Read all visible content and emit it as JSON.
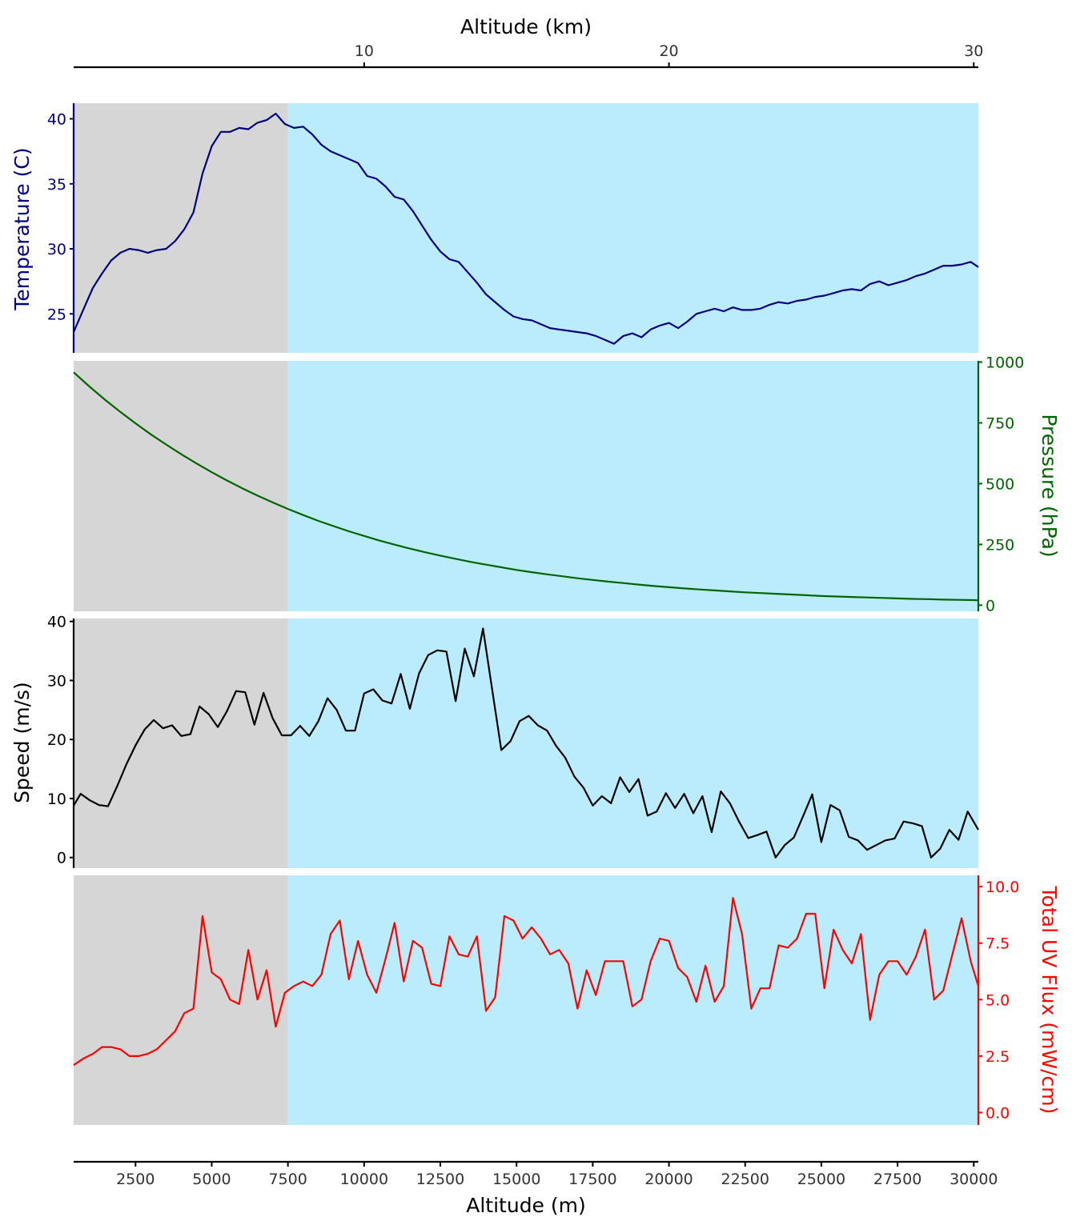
{
  "chart_data": {
    "type": "line",
    "x_label_bottom": "Altitude (m)",
    "x_label_top": "Altitude (km)",
    "x_range": [
      470,
      30150
    ],
    "x_ticks_bottom": [
      "2500",
      "5000",
      "7500",
      "10000",
      "12500",
      "15000",
      "17500",
      "20000",
      "22500",
      "25000",
      "27500",
      "30000"
    ],
    "x_ticks_top": [
      "10",
      "20",
      "30"
    ],
    "regions": [
      {
        "from": 470,
        "to": 7500,
        "color": "#d6d6d6"
      },
      {
        "from": 7500,
        "to": 30150,
        "color": "#bbecfd"
      }
    ],
    "panels": [
      {
        "name": "temperature",
        "ylabel": "Temperature (C)",
        "axis_side": "left",
        "color": "#00007f",
        "ylim": [
          22,
          41.2
        ],
        "yticks": [
          "25",
          "30",
          "35",
          "40"
        ],
        "x": [
          470,
          800,
          1100,
          1400,
          1700,
          2000,
          2300,
          2600,
          2900,
          3200,
          3500,
          3800,
          4100,
          4400,
          4700,
          5000,
          5300,
          5600,
          5900,
          6200,
          6500,
          6800,
          7100,
          7400,
          7700,
          8000,
          8300,
          8600,
          8900,
          9200,
          9500,
          9800,
          10100,
          10400,
          10700,
          11000,
          11300,
          11600,
          11900,
          12200,
          12500,
          12800,
          13100,
          13400,
          13700,
          14000,
          14300,
          14600,
          14900,
          15200,
          15500,
          15800,
          16100,
          16400,
          16700,
          17000,
          17300,
          17600,
          17900,
          18200,
          18500,
          18800,
          19100,
          19400,
          19700,
          20000,
          20300,
          20600,
          20900,
          21200,
          21500,
          21800,
          22100,
          22400,
          22700,
          23000,
          23300,
          23600,
          23900,
          24200,
          24500,
          24800,
          25100,
          25400,
          25700,
          26000,
          26300,
          26600,
          26900,
          27200,
          27500,
          27800,
          28100,
          28400,
          28700,
          29000,
          29300,
          29600,
          29900,
          30150
        ],
        "y": [
          23.6,
          25.4,
          27.0,
          28.1,
          29.1,
          29.7,
          30.0,
          29.9,
          29.7,
          29.9,
          30.0,
          30.6,
          31.5,
          32.8,
          35.8,
          37.9,
          39.0,
          39.0,
          39.3,
          39.2,
          39.7,
          39.9,
          40.4,
          39.6,
          39.3,
          39.4,
          38.8,
          38.0,
          37.5,
          37.2,
          36.9,
          36.6,
          35.6,
          35.4,
          34.8,
          34.0,
          33.8,
          32.9,
          31.8,
          30.7,
          29.8,
          29.2,
          29.0,
          28.2,
          27.4,
          26.5,
          25.9,
          25.3,
          24.8,
          24.6,
          24.5,
          24.2,
          23.9,
          23.8,
          23.7,
          23.6,
          23.5,
          23.3,
          23.0,
          22.7,
          23.3,
          23.5,
          23.2,
          23.8,
          24.1,
          24.3,
          23.9,
          24.4,
          25.0,
          25.2,
          25.4,
          25.2,
          25.5,
          25.3,
          25.3,
          25.4,
          25.7,
          25.9,
          25.8,
          26.0,
          26.1,
          26.3,
          26.4,
          26.6,
          26.8,
          26.9,
          26.8,
          27.3,
          27.5,
          27.2,
          27.4,
          27.6,
          27.9,
          28.1,
          28.4,
          28.7,
          28.7,
          28.8,
          29.0,
          28.6
        ]
      },
      {
        "name": "pressure",
        "ylabel": "Pressure (hPa)",
        "axis_side": "right",
        "color": "#006400",
        "ylim": [
          -25,
          1005
        ],
        "yticks": [
          "0",
          "250",
          "500",
          "750",
          "1000"
        ],
        "x": [
          470,
          1000,
          1500,
          2000,
          2500,
          3000,
          3500,
          4000,
          4500,
          5000,
          5500,
          6000,
          6500,
          7000,
          7500,
          8000,
          8500,
          9000,
          9500,
          10000,
          10500,
          11000,
          11500,
          12000,
          12500,
          13000,
          13500,
          14000,
          14500,
          15000,
          15500,
          16000,
          16500,
          17000,
          17500,
          18000,
          18500,
          19000,
          19500,
          20000,
          20500,
          21000,
          21500,
          22000,
          22500,
          23000,
          23500,
          24000,
          24500,
          25000,
          25500,
          26000,
          26500,
          27000,
          27500,
          28000,
          28500,
          29000,
          29500,
          30000,
          30150
        ],
        "y": [
          958,
          898,
          845,
          795,
          748,
          703,
          661,
          621,
          583,
          547,
          513,
          481,
          451,
          423,
          396,
          371,
          347,
          325,
          304,
          285,
          266,
          249,
          233,
          218,
          204,
          191,
          178,
          167,
          156,
          145,
          136,
          127,
          119,
          111,
          104,
          97,
          91,
          85,
          79,
          74,
          69,
          65,
          61,
          57,
          53,
          50,
          47,
          44,
          41,
          38,
          36,
          34,
          32,
          30,
          28,
          26,
          25,
          23,
          22,
          21,
          20
        ]
      },
      {
        "name": "speed",
        "ylabel": "Speed (m/s)",
        "axis_side": "left",
        "color": "#000000",
        "ylim": [
          -1.8,
          40.5
        ],
        "yticks": [
          "0",
          "10",
          "20",
          "30",
          "40"
        ],
        "x": [
          470,
          700,
          1000,
          1300,
          1600,
          1900,
          2200,
          2500,
          2800,
          3100,
          3400,
          3700,
          4000,
          4300,
          4600,
          4900,
          5200,
          5500,
          5800,
          6100,
          6400,
          6700,
          7000,
          7300,
          7600,
          7900,
          8200,
          8500,
          8800,
          9100,
          9400,
          9700,
          10000,
          10300,
          10600,
          10900,
          11200,
          11500,
          11800,
          12100,
          12400,
          12700,
          13000,
          13300,
          13600,
          13900,
          14200,
          14500,
          14800,
          15100,
          15400,
          15700,
          16000,
          16300,
          16600,
          16900,
          17200,
          17500,
          17800,
          18100,
          18400,
          18700,
          19000,
          19300,
          19600,
          19900,
          20200,
          20500,
          20800,
          21100,
          21400,
          21700,
          22000,
          22300,
          22600,
          22900,
          23200,
          23500,
          23800,
          24100,
          24400,
          24700,
          25000,
          25300,
          25600,
          25900,
          26200,
          26500,
          26800,
          27100,
          27400,
          27700,
          28000,
          28300,
          28600,
          28900,
          29200,
          29500,
          29800,
          30150
        ],
        "y": [
          8.8,
          10.8,
          9.7,
          8.9,
          8.7,
          12.1,
          15.8,
          19.0,
          21.7,
          23.3,
          21.9,
          22.4,
          20.6,
          20.9,
          25.6,
          24.3,
          22.1,
          24.8,
          28.2,
          28.0,
          22.5,
          27.9,
          23.6,
          20.7,
          20.7,
          22.3,
          20.6,
          23.1,
          27.0,
          25.0,
          21.5,
          21.5,
          27.8,
          28.5,
          26.6,
          26.1,
          31.1,
          25.2,
          31.2,
          34.3,
          35.1,
          34.9,
          26.5,
          35.4,
          30.7,
          38.8,
          28.5,
          18.2,
          19.7,
          23.1,
          24.0,
          22.4,
          21.5,
          18.9,
          16.9,
          13.7,
          11.8,
          8.8,
          10.4,
          9.2,
          13.6,
          11.1,
          13.3,
          7.1,
          7.8,
          10.9,
          8.4,
          10.8,
          7.5,
          10.4,
          4.3,
          11.2,
          9.2,
          6.1,
          3.3,
          3.8,
          4.4,
          0.0,
          2.1,
          3.4,
          7.0,
          10.7,
          2.6,
          8.9,
          8.0,
          3.5,
          2.9,
          1.3,
          2.1,
          2.9,
          3.2,
          6.1,
          5.8,
          5.3,
          0.0,
          1.5,
          4.7,
          3.0,
          7.8,
          4.7
        ]
      },
      {
        "name": "uv",
        "ylabel": "Total UV Flux (mW/cm)",
        "axis_side": "right",
        "color": "#ff0000",
        "ylim": [
          -0.55,
          10.5
        ],
        "yticks": [
          "0.0",
          "2.5",
          "5.0",
          "7.5",
          "10.0"
        ],
        "x": [
          470,
          800,
          1100,
          1400,
          1700,
          2000,
          2300,
          2600,
          2900,
          3200,
          3500,
          3800,
          4100,
          4400,
          4700,
          5000,
          5300,
          5600,
          5900,
          6200,
          6500,
          6800,
          7100,
          7400,
          7700,
          8000,
          8300,
          8600,
          8900,
          9200,
          9500,
          9800,
          10100,
          10400,
          10700,
          11000,
          11300,
          11600,
          11900,
          12200,
          12500,
          12800,
          13100,
          13400,
          13700,
          14000,
          14300,
          14600,
          14900,
          15200,
          15500,
          15800,
          16100,
          16400,
          16700,
          17000,
          17300,
          17600,
          17900,
          18200,
          18500,
          18800,
          19100,
          19400,
          19700,
          20000,
          20300,
          20600,
          20900,
          21200,
          21500,
          21800,
          22100,
          22400,
          22700,
          23000,
          23300,
          23600,
          23900,
          24200,
          24500,
          24800,
          25100,
          25400,
          25700,
          26000,
          26300,
          26600,
          26900,
          27200,
          27500,
          27800,
          28100,
          28400,
          28700,
          29000,
          29300,
          29600,
          29900,
          30150
        ],
        "y": [
          2.1,
          2.4,
          2.6,
          2.9,
          2.9,
          2.8,
          2.5,
          2.5,
          2.6,
          2.8,
          3.2,
          3.6,
          4.4,
          4.6,
          8.7,
          6.2,
          5.9,
          5.0,
          4.8,
          7.2,
          5.0,
          6.3,
          3.8,
          5.3,
          5.6,
          5.8,
          5.6,
          6.1,
          7.9,
          8.5,
          5.9,
          7.6,
          6.1,
          5.3,
          6.8,
          8.4,
          5.8,
          7.6,
          7.3,
          5.7,
          5.6,
          7.8,
          7.0,
          6.9,
          7.8,
          4.5,
          5.1,
          8.7,
          8.5,
          7.7,
          8.2,
          7.7,
          7.0,
          7.2,
          6.6,
          4.6,
          6.3,
          5.2,
          6.7,
          6.7,
          6.7,
          4.7,
          5.0,
          6.7,
          7.7,
          7.6,
          6.4,
          6.0,
          4.9,
          6.5,
          4.9,
          5.6,
          9.5,
          7.9,
          4.6,
          5.5,
          5.5,
          7.4,
          7.3,
          7.7,
          8.8,
          8.8,
          5.5,
          8.1,
          7.2,
          6.6,
          7.9,
          4.1,
          6.1,
          6.7,
          6.7,
          6.1,
          6.9,
          8.1,
          5.0,
          5.4,
          7.0,
          8.6,
          6.7,
          5.6
        ]
      }
    ]
  }
}
